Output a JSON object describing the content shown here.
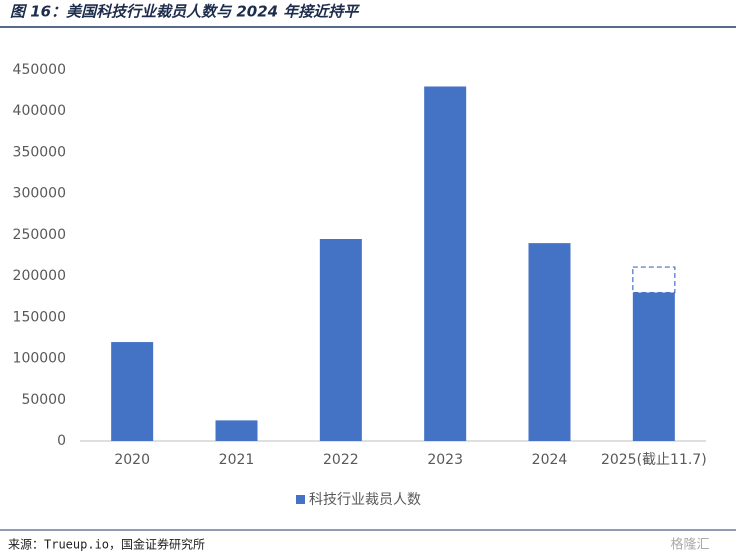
{
  "chart_data": {
    "type": "bar",
    "title": "图 16：美国科技行业裁员人数与 2024 年接近持平",
    "categories": [
      "2020",
      "2021",
      "2022",
      "2023",
      "2024",
      "2025(截止11.7)"
    ],
    "series": [
      {
        "name": "科技行业裁员人数",
        "color": "#4472c4",
        "values": [
          120000,
          25000,
          245000,
          430000,
          240000,
          180000
        ]
      }
    ],
    "dashed_values": [
      null,
      null,
      null,
      null,
      null,
      211000
    ],
    "ylim": [
      0,
      450000
    ],
    "yticks": [
      0,
      50000,
      100000,
      150000,
      200000,
      250000,
      300000,
      350000,
      400000,
      450000
    ],
    "grid": false,
    "legend": "bottom",
    "source": "来源：Trueup.io，国金证券研究所",
    "watermark": "格隆汇"
  }
}
